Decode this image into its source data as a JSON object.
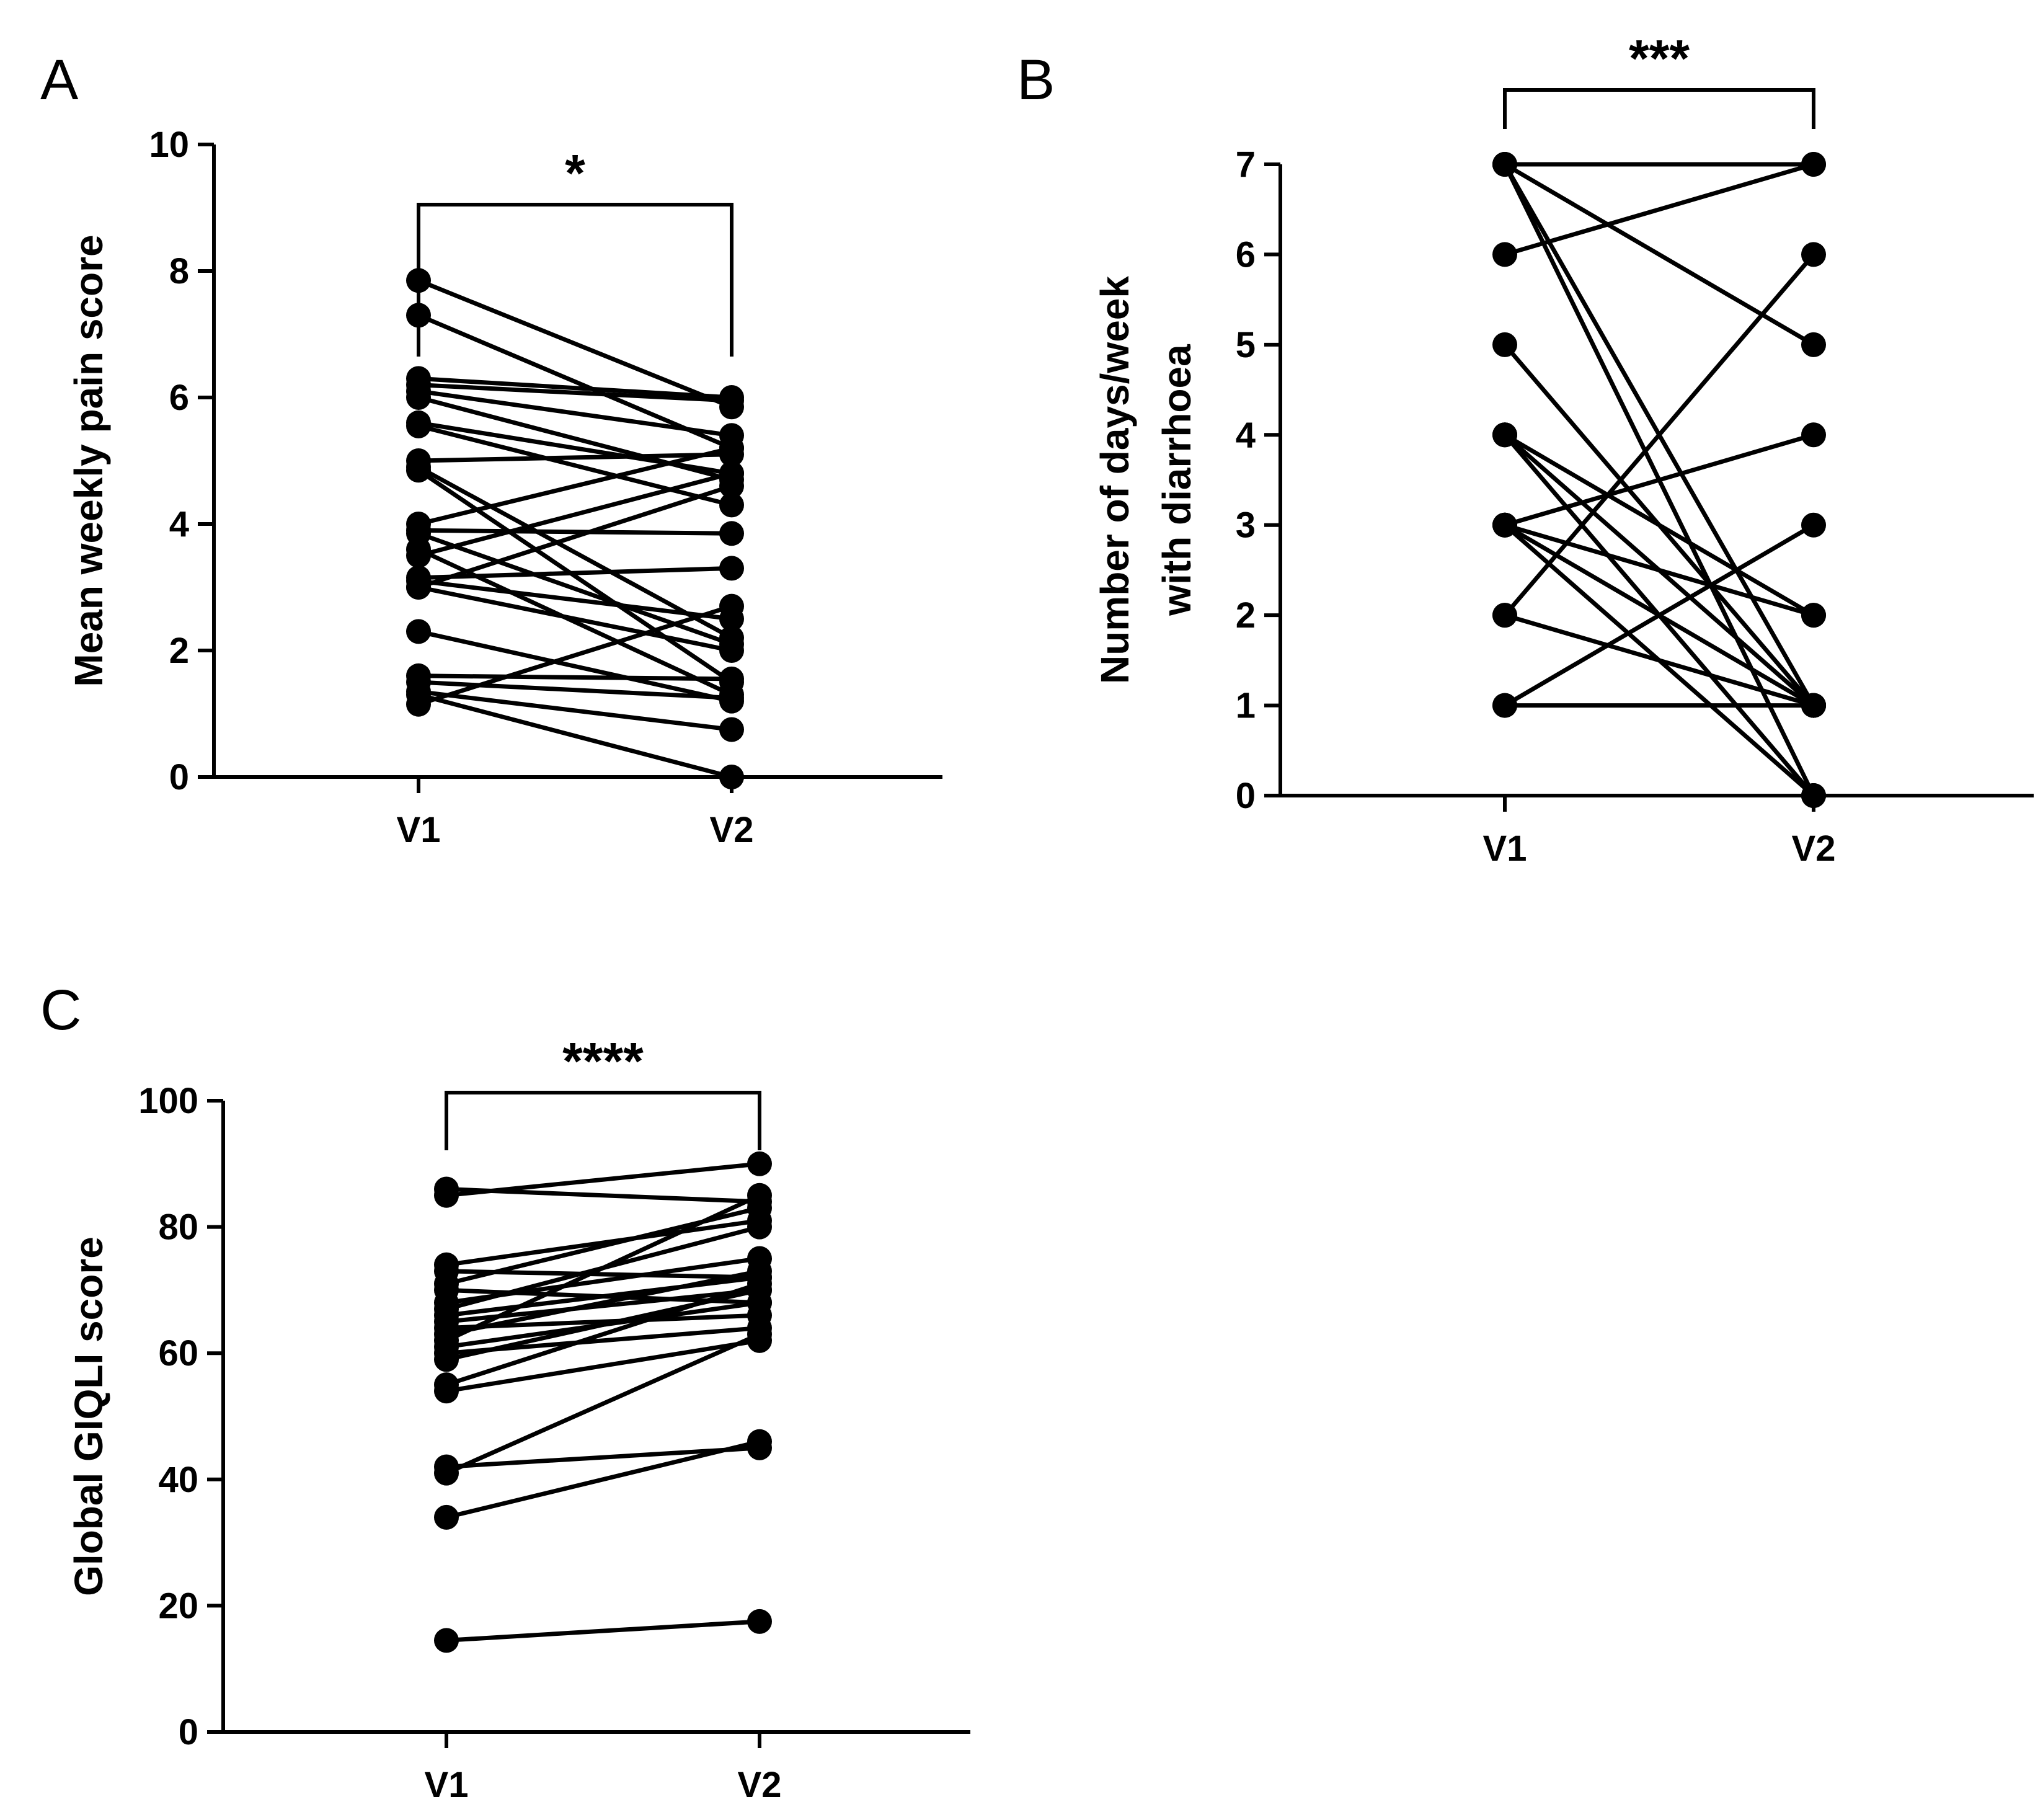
{
  "chart_data": [
    {
      "panel": "A",
      "type": "line",
      "style": "before-after paired dot plot",
      "ylabel": "Mean weekly pain score",
      "xlabel": "",
      "categories": [
        "V1",
        "V2"
      ],
      "ylim": [
        0,
        10
      ],
      "yticks": [
        "0",
        "2",
        "4",
        "6",
        "8",
        "10"
      ],
      "significance": "*",
      "pairs": [
        [
          7.85,
          5.85
        ],
        [
          7.3,
          5.2
        ],
        [
          6.3,
          6.0
        ],
        [
          6.2,
          5.95
        ],
        [
          6.1,
          5.4
        ],
        [
          6.0,
          4.7
        ],
        [
          5.6,
          4.8
        ],
        [
          5.55,
          4.3
        ],
        [
          5.0,
          5.1
        ],
        [
          4.9,
          2.2
        ],
        [
          4.85,
          1.5
        ],
        [
          4.0,
          5.2
        ],
        [
          3.9,
          3.85
        ],
        [
          3.85,
          2.1
        ],
        [
          3.6,
          1.3
        ],
        [
          3.5,
          4.8
        ],
        [
          3.15,
          3.3
        ],
        [
          3.1,
          2.5
        ],
        [
          3.0,
          2.0
        ],
        [
          3.0,
          4.6
        ],
        [
          2.3,
          1.2
        ],
        [
          1.6,
          1.55
        ],
        [
          1.5,
          1.25
        ],
        [
          1.35,
          0.75
        ],
        [
          1.3,
          0.0
        ],
        [
          1.15,
          2.7
        ]
      ]
    },
    {
      "panel": "B",
      "type": "line",
      "style": "before-after paired dot plot",
      "ylabel": "Number of days/week with diarrhoea",
      "ylabel_lines": [
        "Number of days/week",
        "with diarrhoea"
      ],
      "xlabel": "",
      "categories": [
        "V1",
        "V2"
      ],
      "ylim": [
        0,
        7
      ],
      "yticks": [
        "0",
        "1",
        "2",
        "3",
        "4",
        "5",
        "6",
        "7"
      ],
      "significance": "***",
      "pairs": [
        [
          7,
          7
        ],
        [
          7,
          5
        ],
        [
          7,
          1
        ],
        [
          7,
          0
        ],
        [
          6,
          7
        ],
        [
          5,
          1
        ],
        [
          4,
          2
        ],
        [
          4,
          1
        ],
        [
          4,
          0
        ],
        [
          3,
          4
        ],
        [
          3,
          2
        ],
        [
          3,
          1
        ],
        [
          3,
          0
        ],
        [
          2,
          6
        ],
        [
          2,
          1
        ],
        [
          1,
          3
        ],
        [
          1,
          1
        ]
      ]
    },
    {
      "panel": "C",
      "type": "line",
      "style": "before-after paired dot plot",
      "ylabel": "Global GIQLI score",
      "xlabel": "",
      "categories": [
        "V1",
        "V2"
      ],
      "ylim": [
        0,
        100
      ],
      "yticks": [
        "0",
        "20",
        "40",
        "60",
        "80",
        "100"
      ],
      "significance": "****",
      "pairs": [
        [
          86,
          84
        ],
        [
          85,
          90
        ],
        [
          74,
          81
        ],
        [
          73,
          72
        ],
        [
          71,
          83
        ],
        [
          70,
          68
        ],
        [
          68,
          75
        ],
        [
          67,
          80
        ],
        [
          66,
          72
        ],
        [
          65,
          70
        ],
        [
          64,
          66
        ],
        [
          63,
          73
        ],
        [
          62,
          85
        ],
        [
          61,
          68
        ],
        [
          60,
          64
        ],
        [
          59,
          70
        ],
        [
          55,
          71
        ],
        [
          54,
          62
        ],
        [
          42,
          45
        ],
        [
          41,
          63
        ],
        [
          34,
          46
        ],
        [
          14.5,
          17.5
        ]
      ]
    }
  ]
}
